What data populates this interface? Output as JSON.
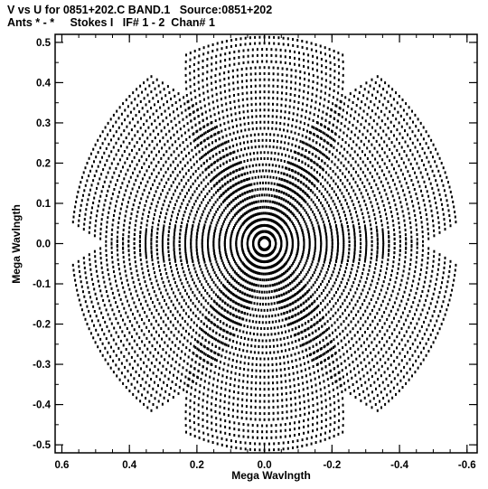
{
  "header": {
    "line1": "V vs U for 0851+202.C BAND.1   Source:0851+202",
    "line2": "Ants * - *     Stokes I   IF# 1 - 2  Chan# 1"
  },
  "chart_data": {
    "type": "scatter",
    "title": "V vs U for 0851+202.C BAND.1   Source:0851+202",
    "subtitle": "Ants * - *     Stokes I   IF# 1 - 2  Chan# 1",
    "xlabel": "Mega Wavlngth",
    "ylabel": "Mega Wavlngth",
    "xlim": [
      0.62,
      -0.63
    ],
    "ylim": [
      -0.52,
      0.52
    ],
    "x_axis_reversed": true,
    "x_ticks": [
      0.6,
      0.4,
      0.2,
      0.0,
      -0.2,
      -0.4,
      -0.6
    ],
    "x_tick_labels": [
      "0.6",
      "0.4",
      "0.2",
      "0.0",
      "-0.2",
      "-0.4",
      "-0.6"
    ],
    "y_ticks": [
      0.5,
      0.4,
      0.3,
      0.2,
      0.1,
      0.0,
      -0.1,
      -0.2,
      -0.3,
      -0.4,
      -0.5
    ],
    "y_tick_labels": [
      "0.5",
      "0.4",
      "0.3",
      "0.2",
      "0.1",
      "0.0",
      "-0.1",
      "-0.2",
      "-0.3",
      "-0.4",
      "-0.5"
    ],
    "grid": false,
    "marker_color": "#000000",
    "uv_coverage": {
      "num_arcs": 34,
      "max_radius": 0.57,
      "lobe_axes_deg": [
        30,
        90,
        150,
        210,
        270,
        330
      ],
      "lobe_half_width_deg": 24,
      "points_per_arc": 60
    }
  }
}
